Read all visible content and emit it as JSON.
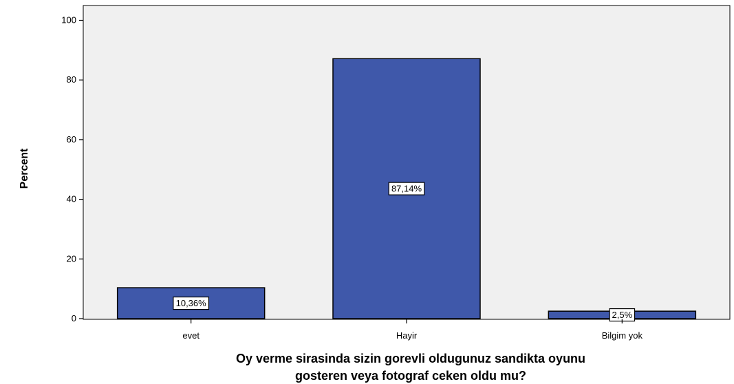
{
  "chart_data": {
    "type": "bar",
    "categories": [
      "evet",
      "Hayir",
      "Bilgim yok"
    ],
    "values": [
      10.36,
      87.14,
      2.5
    ],
    "data_labels": [
      "10,36%",
      "87,14%",
      "2,5%"
    ],
    "ylabel": "Percent",
    "xlabel_lines": [
      "Oy verme sirasinda sizin gorevli oldugunuz sandikta oyunu",
      "gosteren veya fotograf ceken oldu mu?"
    ],
    "ylim": [
      0,
      105
    ],
    "yticks": [
      0,
      20,
      40,
      60,
      80,
      100
    ],
    "grid": false,
    "colors": {
      "bar": "#3f58aa",
      "plot_bg": "#f0f0f0",
      "label_bg": "#ffffff",
      "edge": "#000000"
    }
  }
}
